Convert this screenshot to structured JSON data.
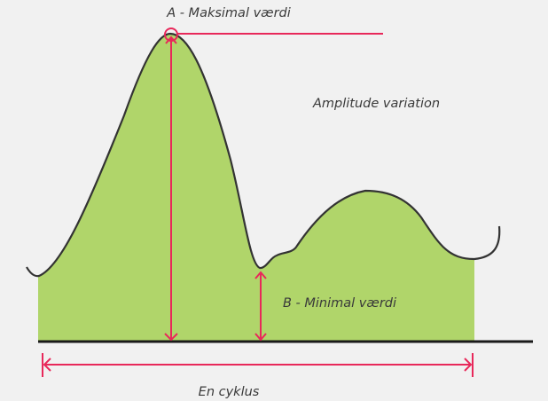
{
  "labels": {
    "max": "A - Maksimal værdi",
    "amplitude": "Amplitude variation",
    "min": "B - Minimal værdi",
    "cycle": "En cyklus"
  },
  "colors": {
    "background": "#f1f1f1",
    "fill": "#b0d56a",
    "curve": "#333333",
    "accent": "#e8285a",
    "baseline": "#1a1a1a"
  }
}
